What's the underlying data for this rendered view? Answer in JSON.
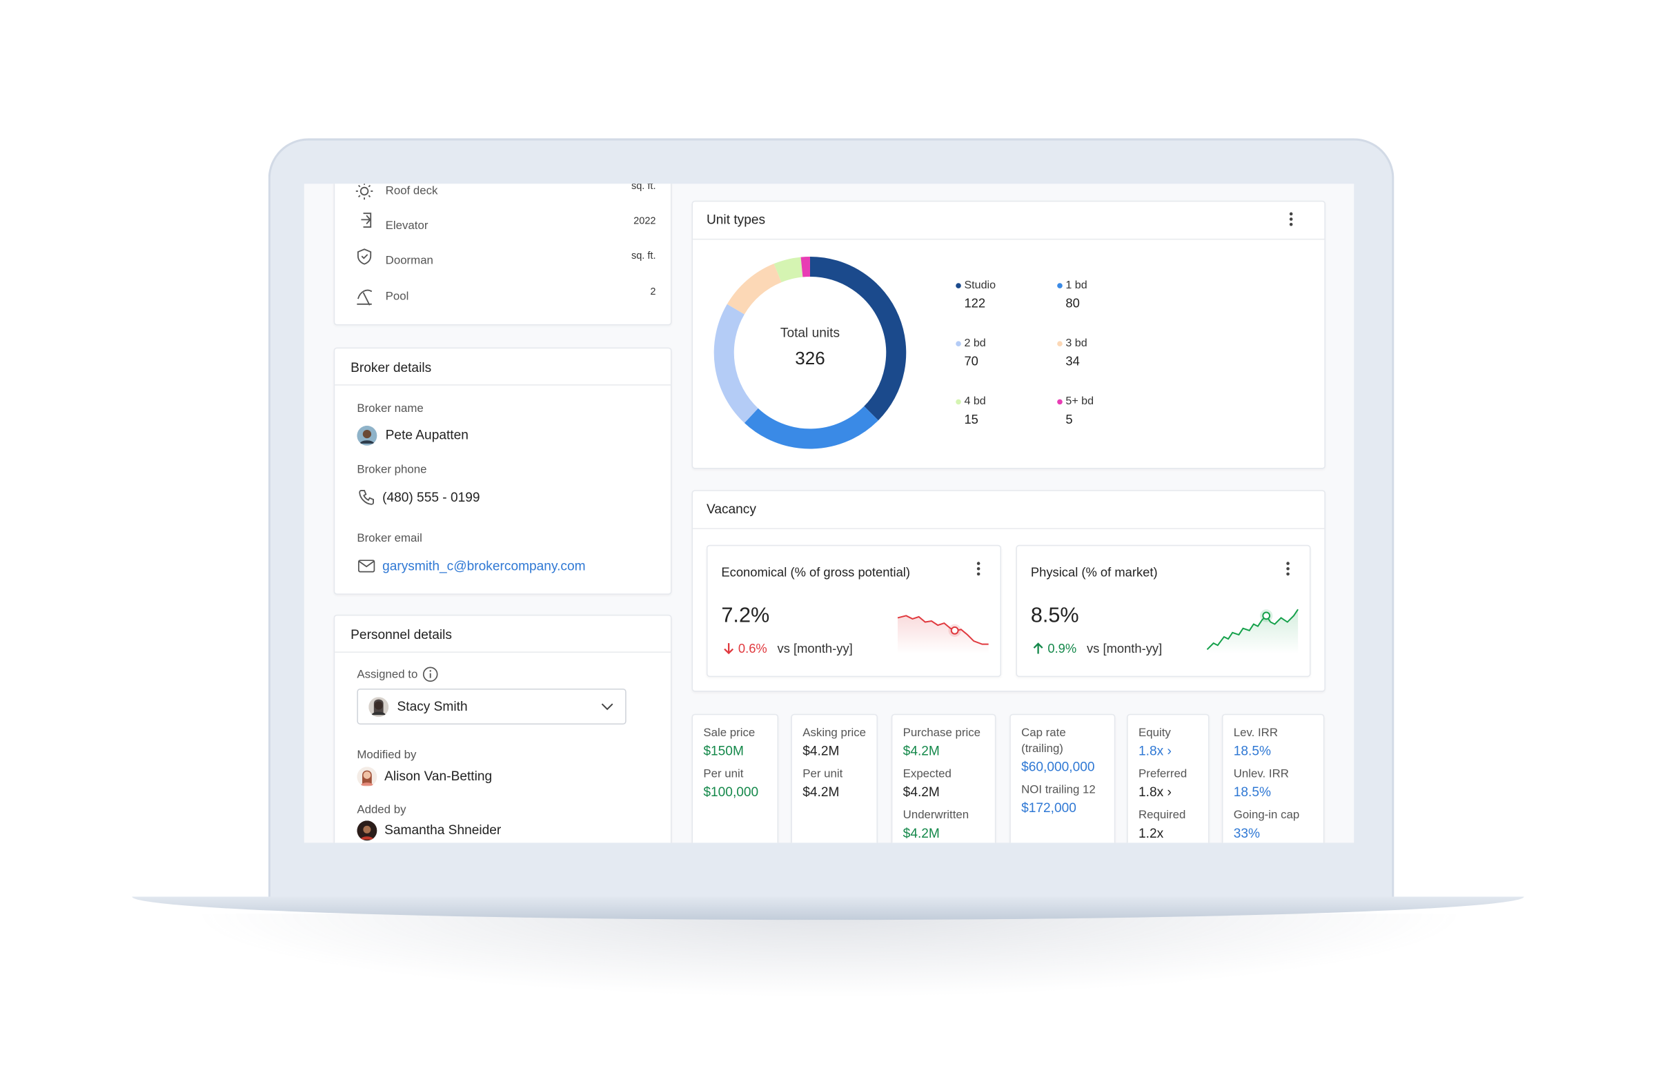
{
  "amenities": [
    {
      "label": "Roof deck",
      "value": "sq. ft."
    },
    {
      "label": "Elevator",
      "value": "2022"
    },
    {
      "label": "Doorman",
      "value": "sq. ft."
    },
    {
      "label": "Pool",
      "value": "2"
    }
  ],
  "broker": {
    "title": "Broker details",
    "name_label": "Broker name",
    "name": "Pete Aupatten",
    "phone_label": "Broker phone",
    "phone": "(480) 555 - 0199",
    "email_label": "Broker email",
    "email": "garysmith_c@brokercompany.com"
  },
  "personnel": {
    "title": "Personnel details",
    "assigned_label": "Assigned to",
    "assigned": "Stacy Smith",
    "modified_label": "Modified by",
    "modified": "Alison Van-Betting",
    "added_label": "Added by",
    "added": "Samantha Shneider"
  },
  "chart_data": {
    "type": "donut",
    "title": "Unit types",
    "center_label": "Total units",
    "total": 326,
    "categories": [
      "Studio",
      "1 bd",
      "2 bd",
      "3 bd",
      "4 bd",
      "5+ bd"
    ],
    "values": [
      122,
      80,
      70,
      34,
      15,
      5
    ],
    "colors": [
      "#1b4a8c",
      "#3a8ae6",
      "#b4ccf6",
      "#fcd8b6",
      "#d5f4b2",
      "#e83db4"
    ]
  },
  "vacancy": {
    "title": "Vacancy",
    "cards": [
      {
        "title": "Economical (% of gross potential)",
        "value": "7.2%",
        "change": "0.6%",
        "direction": "down",
        "compare": "vs [month-yy]"
      },
      {
        "title": "Physical (% of market)",
        "value": "8.5%",
        "change": "0.9%",
        "direction": "up",
        "compare": "vs [month-yy]"
      }
    ]
  },
  "metrics": [
    {
      "items": [
        {
          "label": "Sale price",
          "value": "$150M",
          "tone": "green"
        },
        {
          "label": "Per unit",
          "value": "$100,000",
          "tone": "green"
        }
      ]
    },
    {
      "items": [
        {
          "label": "Asking price",
          "value": "$4.2M",
          "tone": "dark"
        },
        {
          "label": "Per unit",
          "value": "$4.2M",
          "tone": "dark"
        }
      ]
    },
    {
      "items": [
        {
          "label": "Purchase price",
          "value": "$4.2M",
          "tone": "green"
        },
        {
          "label": "Expected",
          "value": "$4.2M",
          "tone": "dark"
        },
        {
          "label": "Underwritten",
          "value": "$4.2M",
          "tone": "green"
        }
      ]
    },
    {
      "items": [
        {
          "label": "Cap rate (trailing)",
          "value": "$60,000,000",
          "tone": "blue"
        },
        {
          "label": "NOI trailing 12",
          "value": "$172,000",
          "tone": "blue"
        }
      ]
    },
    {
      "items": [
        {
          "label": "Equity",
          "value": "1.8x ›",
          "tone": "blue"
        },
        {
          "label": "Preferred",
          "value": "1.8x ›",
          "tone": "dark"
        },
        {
          "label": "Required",
          "value": "1.2x",
          "tone": "dark"
        }
      ]
    },
    {
      "items": [
        {
          "label": "Lev. IRR",
          "value": "18.5%",
          "tone": "blue"
        },
        {
          "label": "Unlev. IRR",
          "value": "18.5%",
          "tone": "blue"
        },
        {
          "label": "Going-in cap",
          "value": "33%",
          "tone": "blue"
        }
      ]
    }
  ]
}
